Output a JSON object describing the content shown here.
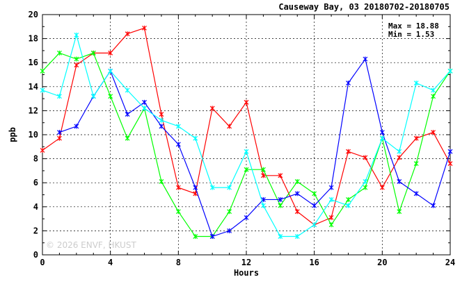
{
  "chart_data": {
    "type": "line",
    "title": "Causeway Bay, 03 20180702-20180705",
    "xlabel": "Hours",
    "ylabel": "ppb",
    "xlim": [
      0,
      24
    ],
    "ylim": [
      0,
      20
    ],
    "xticks": [
      0,
      4,
      8,
      12,
      16,
      20,
      24
    ],
    "yticks": [
      0,
      2,
      4,
      6,
      8,
      10,
      12,
      14,
      16,
      18,
      20
    ],
    "grid": true,
    "stats": {
      "max_text": "Max = 18.88",
      "min_text": "Min =  1.53"
    },
    "watermark": "© 2026  ENVF, HKUST",
    "x": [
      0,
      1,
      2,
      3,
      4,
      5,
      6,
      7,
      8,
      9,
      10,
      11,
      12,
      13,
      14,
      15,
      16,
      17,
      18,
      19,
      20,
      21,
      22,
      23,
      24
    ],
    "series": [
      {
        "color": "#ff0000",
        "values": [
          8.7,
          9.7,
          15.8,
          16.8,
          16.8,
          18.4,
          18.88,
          11.7,
          5.6,
          5.1,
          12.2,
          10.7,
          12.7,
          6.6,
          6.6,
          3.6,
          2.5,
          3.1,
          8.6,
          8.1,
          5.6,
          8.1,
          9.7,
          10.2,
          7.6
        ]
      },
      {
        "color": "#00ff00",
        "values": [
          15.3,
          16.8,
          16.3,
          16.8,
          13.2,
          9.7,
          12.2,
          6.1,
          3.6,
          1.53,
          1.53,
          3.6,
          7.1,
          7.1,
          4.1,
          6.1,
          5.1,
          2.5,
          4.6,
          5.6,
          9.7,
          3.6,
          7.6,
          13.2,
          15.3
        ]
      },
      {
        "color": "#0000ff",
        "values": [
          null,
          10.2,
          10.7,
          13.2,
          15.3,
          11.7,
          12.7,
          10.7,
          9.2,
          5.6,
          1.53,
          2.0,
          3.1,
          4.6,
          4.6,
          5.1,
          4.1,
          5.6,
          14.3,
          16.3,
          10.2,
          6.1,
          5.1,
          4.1,
          8.6
        ]
      },
      {
        "color": "#00ffff",
        "values": [
          13.7,
          13.2,
          18.3,
          13.2,
          15.3,
          13.7,
          12.2,
          11.2,
          10.7,
          9.7,
          5.6,
          5.6,
          8.6,
          4.1,
          1.53,
          1.53,
          2.5,
          4.6,
          4.1,
          6.1,
          9.7,
          8.6,
          14.3,
          13.7,
          15.3
        ]
      }
    ]
  }
}
